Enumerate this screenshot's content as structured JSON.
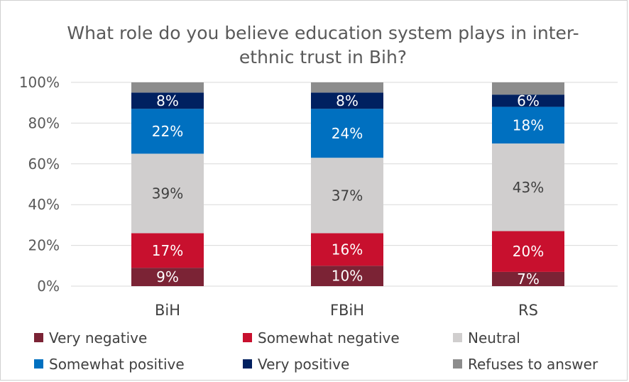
{
  "chart_data": {
    "type": "bar",
    "stacked": true,
    "percent": true,
    "title": "What role do you believe education system plays in inter-ethnic trust in Bih?",
    "title_lines": [
      "What role do you believe education system plays in inter-",
      "ethnic trust in Bih?"
    ],
    "categories": [
      "BiH",
      "FBiH",
      "RS"
    ],
    "ylim": [
      0,
      100
    ],
    "yticks": [
      "0%",
      "20%",
      "40%",
      "60%",
      "80%",
      "100%"
    ],
    "grid": true,
    "legend_position": "bottom",
    "series": [
      {
        "name": "Very negative",
        "color": "#7B2335",
        "values": [
          9,
          10,
          7
        ],
        "labels": [
          "9%",
          "10%",
          "7%"
        ],
        "label_color": "#ffffff"
      },
      {
        "name": "Somewhat negative",
        "color": "#C8102E",
        "values": [
          17,
          16,
          20
        ],
        "labels": [
          "17%",
          "16%",
          "20%"
        ],
        "label_color": "#ffffff"
      },
      {
        "name": "Neutral",
        "color": "#D0CECE",
        "values": [
          39,
          37,
          43
        ],
        "labels": [
          "39%",
          "37%",
          "43%"
        ],
        "label_color": "#404040"
      },
      {
        "name": "Somewhat positive",
        "color": "#0070C0",
        "values": [
          22,
          24,
          18
        ],
        "labels": [
          "22%",
          "24%",
          "18%"
        ],
        "label_color": "#ffffff"
      },
      {
        "name": "Very positive",
        "color": "#002060",
        "values": [
          8,
          8,
          6
        ],
        "labels": [
          "8%",
          "8%",
          "6%"
        ],
        "label_color": "#ffffff"
      },
      {
        "name": "Refuses to answer",
        "color": "#8C8C8C",
        "values": [
          5,
          5,
          6
        ],
        "labels": [],
        "label_color": "#ffffff"
      }
    ]
  }
}
